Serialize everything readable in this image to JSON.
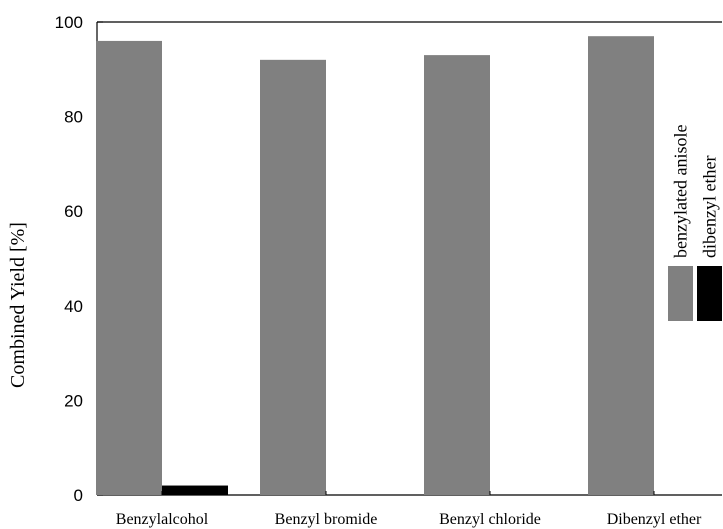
{
  "chart_data": {
    "type": "bar",
    "title": "",
    "xlabel": "",
    "ylabel": "Combined Yield [%]",
    "ylim": [
      0,
      100
    ],
    "yticks": [
      0,
      20,
      40,
      60,
      80,
      100
    ],
    "grid": false,
    "legend_position": "right",
    "categories": [
      "Benzylalcohol",
      "Benzyl bromide",
      "Benzyl chloride",
      "Dibenzyl ether"
    ],
    "series": [
      {
        "name": "benzylated anisole",
        "color": "#808080",
        "values": [
          96,
          92,
          93,
          97
        ]
      },
      {
        "name": "dibenzyl ether",
        "color": "#000000",
        "values": [
          2,
          0,
          0,
          0
        ]
      }
    ]
  }
}
